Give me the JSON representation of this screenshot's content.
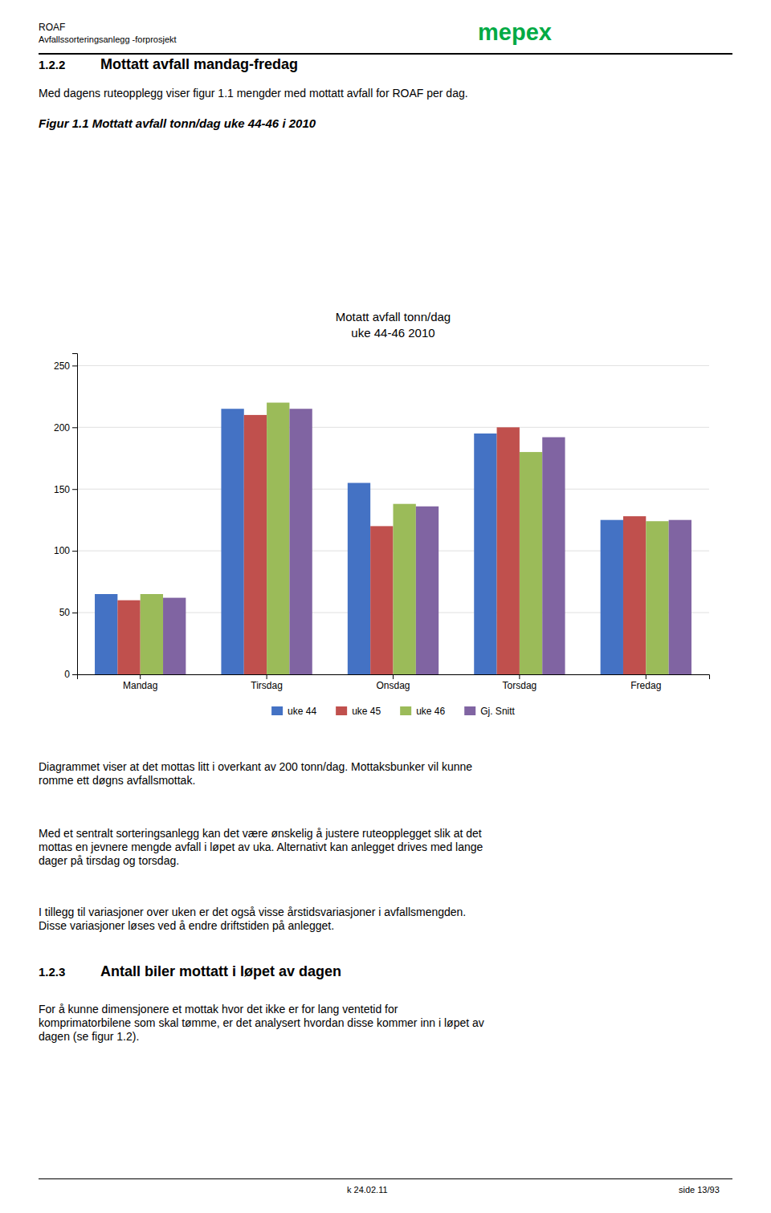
{
  "chart_data": {
    "type": "bar",
    "title": "Motatt avfall  tonn/dag",
    "subtitle": "uke 44-46 2010",
    "categories": [
      "Mandag",
      "Tirsdag",
      "Onsdag",
      "Torsdag",
      "Fredag"
    ],
    "series": [
      {
        "name": "uke 44",
        "color": "#4472C4",
        "values": [
          65,
          215,
          155,
          195,
          125
        ]
      },
      {
        "name": "uke 45",
        "color": "#C0504D",
        "values": [
          60,
          210,
          120,
          200,
          128
        ]
      },
      {
        "name": "uke 46",
        "color": "#9BBB59",
        "values": [
          65,
          220,
          138,
          180,
          124
        ]
      },
      {
        "name": "Gj. Snitt",
        "color": "#8064A2",
        "values": [
          62,
          215,
          136,
          192,
          125
        ]
      }
    ],
    "ylim": [
      0,
      260
    ],
    "yticks": [
      0,
      50,
      100,
      150,
      200,
      250
    ],
    "grid": true,
    "legend": "bottom"
  },
  "document": {
    "header_title": "ROAF",
    "header_subtitle": "Avfallssorteringsanlegg -forprosjekt",
    "logo": "mepex",
    "logo_color": "#00AA44",
    "section1_number": "1.2.2",
    "section1_heading": "Mottatt avfall mandag-fredag",
    "intro": "Med dagens ruteopplegg viser figur 1.1 mengder med mottatt avfall for ROAF per dag.",
    "caption": "Figur 1.1 Mottatt avfall tonn/dag uke 44-46 i 2010",
    "paragraphs": [
      [
        "Diagrammet viser at det mottas litt i overkant av 200 tonn/dag. Mottaksbunker vil kunne",
        "romme ett døgns avfallsmottak."
      ],
      [
        "Med et sentralt sorteringsanlegg kan det være ønskelig å justere ruteopplegget slik at det",
        "mottas en jevnere mengde avfall i løpet av uka. Alternativt kan anlegget drives med lange",
        "dager på tirsdag og torsdag."
      ],
      [
        "I tillegg til variasjoner over uken er det også visse årstidsvariasjoner i avfallsmengden.",
        "Disse variasjoner løses ved å endre driftstiden på anlegget."
      ]
    ],
    "section2_number": "1.2.3",
    "section2_heading": "Antall biler mottatt i løpet av dagen",
    "section2_paragraph": [
      "For å kunne dimensjonere et mottak hvor det ikke er for lang ventetid for",
      "komprimatorbilene som skal tømme, er det analysert hvordan disse kommer inn i løpet av",
      "dagen (se figur 1.2)."
    ],
    "footer_left": "k 24.02.11",
    "footer_right": "side 13/93"
  }
}
